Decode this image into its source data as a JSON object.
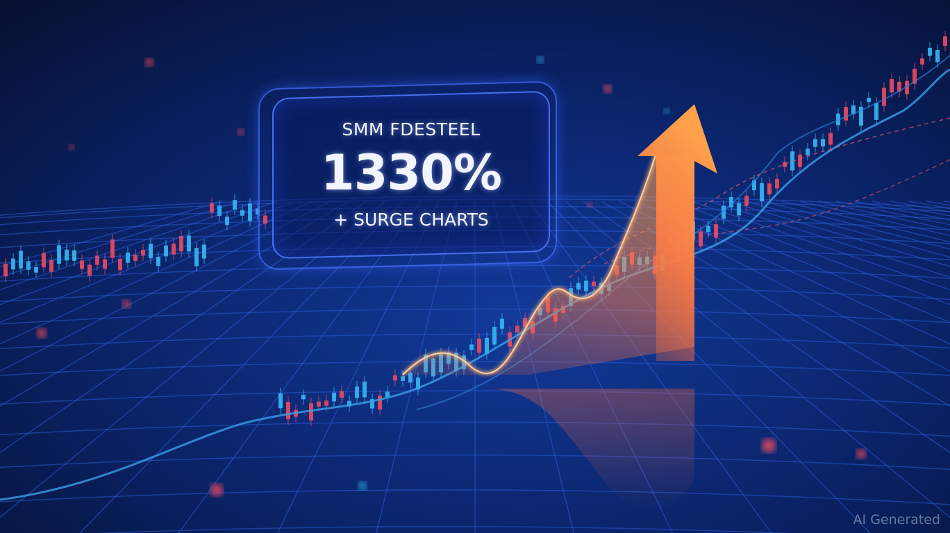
{
  "panel": {
    "title": "SMM FDESTEEL",
    "value": "1330%",
    "subtitle": "+ SURGE CHARTS"
  },
  "watermark": "AI Generated",
  "colors": {
    "background": "#06112e",
    "grid": "#2a5bd6",
    "arrow": "#ff8a3d",
    "candle_up": "#35b6f0",
    "candle_down": "#e84a5f",
    "line": "#3aa0e8"
  }
}
